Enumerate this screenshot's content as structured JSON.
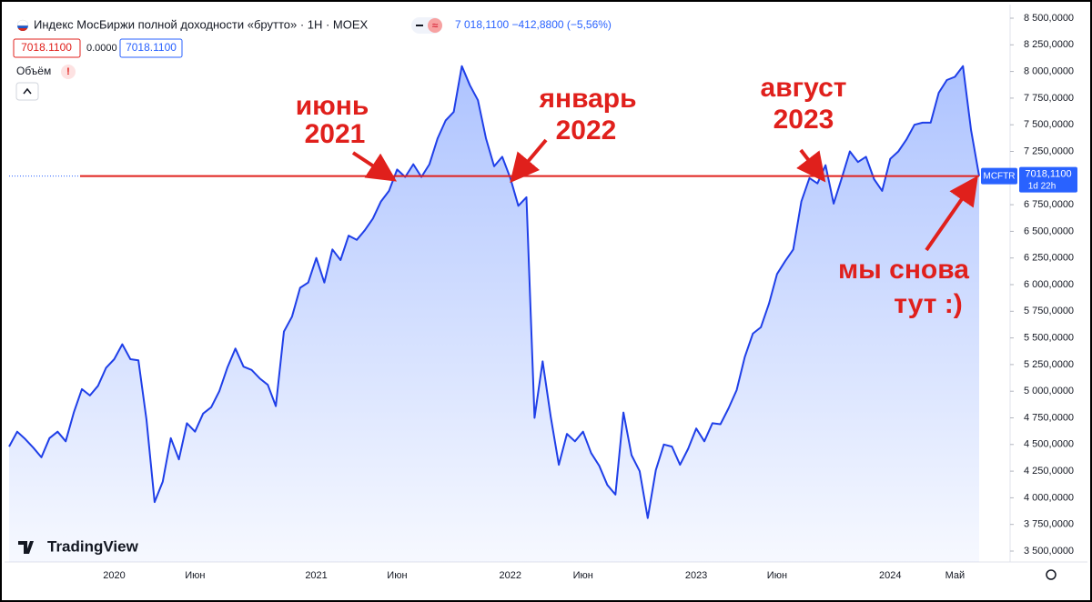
{
  "chart_data": {
    "type": "area",
    "title": "Индекс МосБиржи полной доходности «брутто» · 1Н · MOEX",
    "change": "7 018,1100 −412,8800 (−5,56%)",
    "ohlc_boxes": [
      "7018.1100",
      "0.0000",
      "7018.1100"
    ],
    "volume_label": "Объём",
    "brand": "TradingView",
    "color": "#1f3fe8",
    "categories": [
      null,
      null,
      null,
      null,
      null,
      null,
      null,
      null,
      null,
      null,
      null,
      null,
      null,
      "2020",
      null,
      null,
      null,
      null,
      null,
      null,
      null,
      null,
      null,
      "Июн",
      null,
      null,
      null,
      null,
      null,
      null,
      null,
      null,
      null,
      null,
      null,
      null,
      null,
      null,
      "2021",
      null,
      null,
      null,
      null,
      null,
      null,
      null,
      null,
      null,
      "Июн",
      null,
      null,
      null,
      null,
      null,
      null,
      null,
      null,
      null,
      null,
      null,
      null,
      null,
      "2022",
      null,
      null,
      null,
      null,
      null,
      null,
      null,
      null,
      "Июн",
      null,
      null,
      null,
      null,
      null,
      null,
      null,
      null,
      null,
      null,
      null,
      null,
      null,
      "2023",
      null,
      null,
      null,
      null,
      null,
      null,
      null,
      null,
      null,
      "Июн",
      null,
      null,
      null,
      null,
      null,
      null,
      null,
      null,
      null,
      null,
      null,
      null,
      null,
      "2024",
      null,
      null,
      null,
      null,
      null,
      null,
      null,
      "Май",
      null,
      null,
      null
    ],
    "values": [
      4480,
      4620,
      4550,
      4470,
      4380,
      4560,
      4620,
      4530,
      4800,
      5020,
      4960,
      5050,
      5220,
      5300,
      5440,
      5300,
      5290,
      4730,
      3960,
      4150,
      4560,
      4360,
      4700,
      4620,
      4790,
      4850,
      5000,
      5220,
      5400,
      5230,
      5200,
      5120,
      5060,
      4860,
      5560,
      5700,
      5970,
      6020,
      6250,
      6020,
      6330,
      6230,
      6460,
      6420,
      6510,
      6620,
      6780,
      6880,
      7080,
      7010,
      7130,
      7010,
      7130,
      7370,
      7540,
      7620,
      8050,
      7870,
      7730,
      7370,
      7110,
      7200,
      7000,
      6740,
      6820,
      4750,
      5280,
      4760,
      4310,
      4600,
      4530,
      4620,
      4420,
      4300,
      4120,
      4030,
      4800,
      4400,
      4250,
      3810,
      4260,
      4500,
      4480,
      4310,
      4460,
      4650,
      4530,
      4700,
      4690,
      4840,
      5010,
      5320,
      5540,
      5600,
      5820,
      6100,
      6220,
      6330,
      6780,
      7000,
      6950,
      7120,
      6760,
      7000,
      7250,
      7150,
      7200,
      6990,
      6880,
      7180,
      7250,
      7360,
      7500,
      7520,
      7520,
      7800,
      7920,
      7950,
      8050,
      7450,
      7018.11
    ],
    "ylim": [
      3500,
      8500
    ],
    "yticks": [
      {
        "value": 3500,
        "label": "3 500,0000"
      },
      {
        "value": 3750,
        "label": "3 750,0000"
      },
      {
        "value": 4000,
        "label": "4 000,0000"
      },
      {
        "value": 4250,
        "label": "4 250,0000"
      },
      {
        "value": 4500,
        "label": "4 500,0000"
      },
      {
        "value": 4750,
        "label": "4 750,0000"
      },
      {
        "value": 5000,
        "label": "5 000,0000"
      },
      {
        "value": 5250,
        "label": "5 250,0000"
      },
      {
        "value": 5500,
        "label": "5 500,0000"
      },
      {
        "value": 5750,
        "label": "5 750,0000"
      },
      {
        "value": 6000,
        "label": "6 000,0000"
      },
      {
        "value": 6250,
        "label": "6 250,0000"
      },
      {
        "value": 6500,
        "label": "6 500,0000"
      },
      {
        "value": 6750,
        "label": "6 750,0000"
      },
      {
        "value": 7000,
        "label": "7 000,0000"
      },
      {
        "value": 7250,
        "label": "7 250,0000"
      },
      {
        "value": 7500,
        "label": "7 500,0000"
      },
      {
        "value": 7750,
        "label": "7 750,0000"
      },
      {
        "value": 8000,
        "label": "8 000,0000"
      },
      {
        "value": 8250,
        "label": "8 250,0000"
      },
      {
        "value": 8500,
        "label": "8 500,0000"
      }
    ],
    "last_price": {
      "value": 7018.11,
      "label": "7018,1100",
      "symbol": "MCFTR",
      "countdown": "1d 22h",
      "line_color": "#e0201c"
    },
    "annotations": [
      {
        "lines": [
          "июнь",
          "2021"
        ]
      },
      {
        "lines": [
          "январь",
          "2022"
        ]
      },
      {
        "lines": [
          "август",
          "2023"
        ]
      },
      {
        "lines": [
          "мы снова",
          "тут :)"
        ]
      }
    ]
  }
}
